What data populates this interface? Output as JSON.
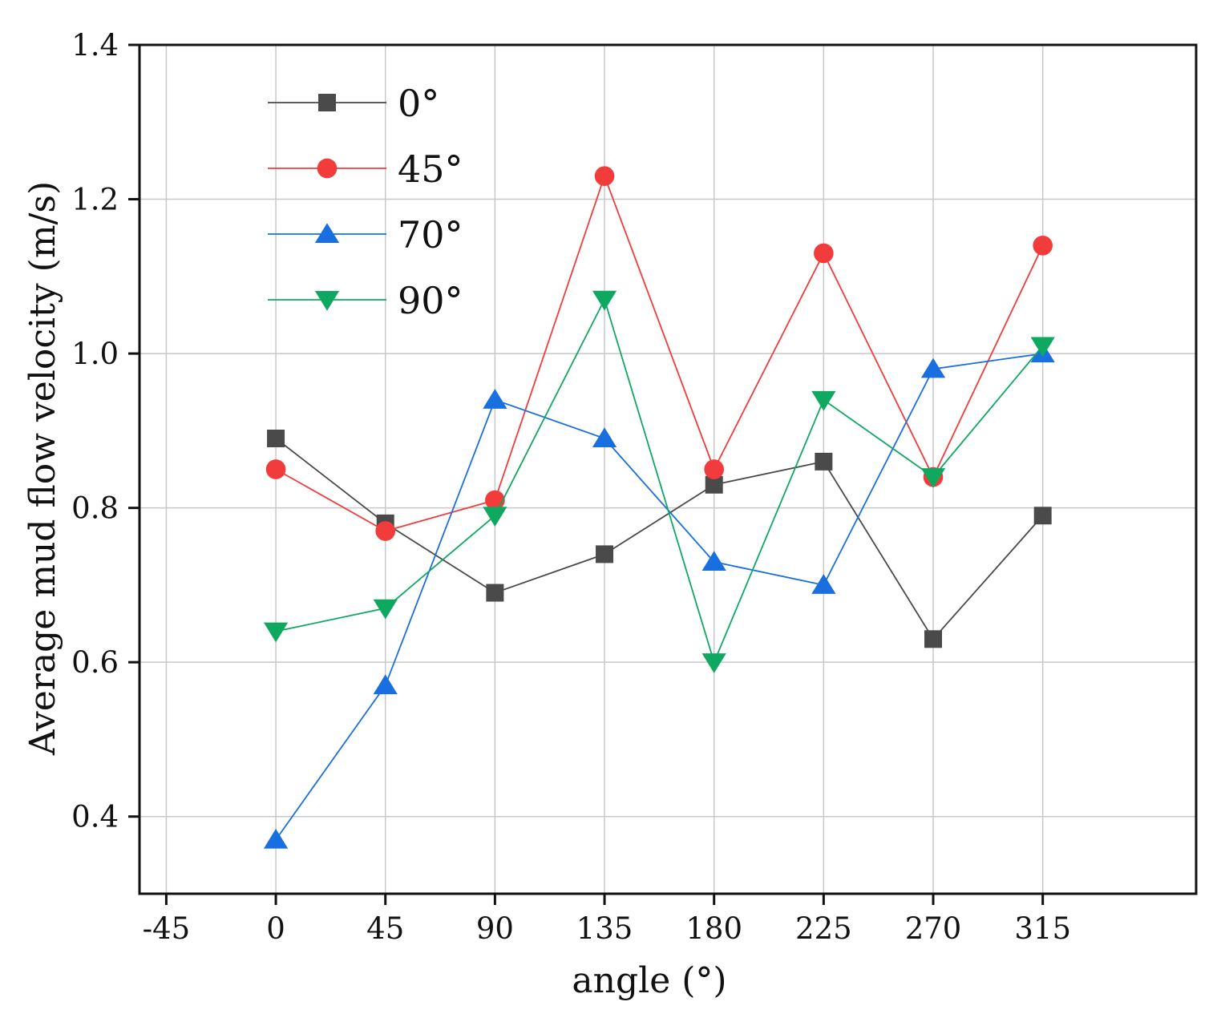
{
  "chart_data": {
    "type": "line",
    "title": "",
    "xlabel": "angle (°)",
    "ylabel": "Average mud flow velocity (m/s)",
    "xlim": [
      -56,
      378
    ],
    "ylim": [
      0.3,
      1.4
    ],
    "x_ticks": [
      -45,
      0,
      45,
      90,
      135,
      180,
      225,
      270,
      315
    ],
    "x_tick_labels": [
      "-45",
      "0",
      "45",
      "90",
      "135",
      "180",
      "225",
      "270",
      "315"
    ],
    "y_ticks": [
      0.4,
      0.6,
      0.8,
      1.0,
      1.2,
      1.4
    ],
    "y_tick_labels": [
      "0.4",
      "0.6",
      "0.8",
      "1.0",
      "1.2",
      "1.4"
    ],
    "grid": true,
    "legend_position": "top-left",
    "x": [
      0,
      45,
      90,
      135,
      180,
      225,
      270,
      315
    ],
    "series": [
      {
        "name": "0°",
        "color": "#4a4a4a",
        "marker": "square",
        "values": [
          0.89,
          0.78,
          0.69,
          0.74,
          0.83,
          0.86,
          0.63,
          0.79
        ]
      },
      {
        "name": "45°",
        "color": "#f23b3b",
        "marker": "circle",
        "values": [
          0.85,
          0.77,
          0.81,
          1.23,
          0.85,
          1.13,
          0.84,
          1.14
        ]
      },
      {
        "name": "70°",
        "color": "#1a6fe0",
        "marker": "triangle-up",
        "values": [
          0.37,
          0.57,
          0.94,
          0.89,
          0.73,
          0.7,
          0.98,
          1.0
        ]
      },
      {
        "name": "90°",
        "color": "#0fa860",
        "marker": "triangle-down",
        "values": [
          0.64,
          0.67,
          0.79,
          1.07,
          0.6,
          0.94,
          0.84,
          1.01
        ]
      }
    ]
  }
}
